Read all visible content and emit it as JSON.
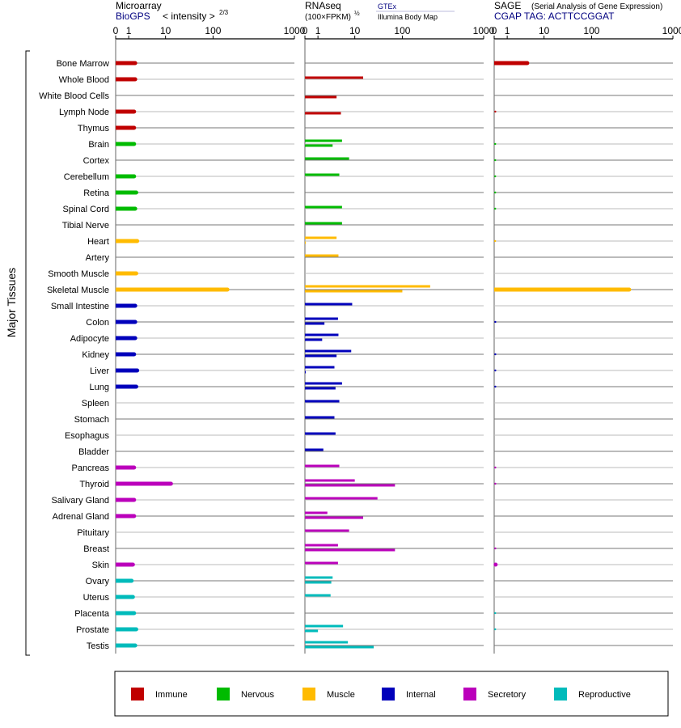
{
  "colors": {
    "Immune": "#c00000",
    "Nervous": "#00bb00",
    "Muscle": "#ffbb00",
    "Internal": "#0000bb",
    "Secretory": "#bb00bb",
    "Reproductive": "#00bbbb"
  },
  "side_label": "Major Tissues",
  "legend": [
    "Immune",
    "Nervous",
    "Muscle",
    "Internal",
    "Secretory",
    "Reproductive"
  ],
  "panels": [
    {
      "title": "Microarray",
      "subtitle": "BioGPS",
      "subtitle_extra": "< intensity >",
      "exponent": "2/3",
      "ticks": [
        "0",
        "1",
        "10",
        "100",
        "1000"
      ]
    },
    {
      "title": "RNAseq",
      "subtitle": "(100×FPKM)",
      "exponent": "½",
      "source_top": "GTEx",
      "source_bottom": "Illumina Body Map",
      "ticks": [
        "0",
        "1",
        "10",
        "100",
        "1000"
      ]
    },
    {
      "title": "SAGE",
      "title_extra": "(Serial Analysis of Gene Expression)",
      "subtitle": "CGAP TAG: ACTTCCGGAT",
      "ticks": [
        "0",
        "1",
        "10",
        "100",
        "1000"
      ]
    }
  ],
  "chart_data": {
    "type": "bar",
    "scale": "custom (0, 1, 10, 100, 1000 tick positions)",
    "xlim": [
      0,
      1000
    ],
    "tissues": [
      {
        "name": "Bone Marrow",
        "system": "Immune",
        "microarray": 1.5,
        "gtex": null,
        "ibm": null,
        "sage": 3.5
      },
      {
        "name": "Whole Blood",
        "system": "Immune",
        "microarray": 1.5,
        "gtex": 15,
        "ibm": null,
        "sage": 0
      },
      {
        "name": "White Blood Cells",
        "system": "Immune",
        "microarray": null,
        "gtex": null,
        "ibm": 3.2,
        "sage": 0
      },
      {
        "name": "Lymph Node",
        "system": "Immune",
        "microarray": 1.4,
        "gtex": null,
        "ibm": 4.2,
        "sage": 0.05
      },
      {
        "name": "Thymus",
        "system": "Immune",
        "microarray": 1.4,
        "gtex": null,
        "ibm": null,
        "sage": 0
      },
      {
        "name": "Brain",
        "system": "Nervous",
        "microarray": 1.4,
        "gtex": 4.5,
        "ibm": 2.5,
        "sage": 0.03
      },
      {
        "name": "Cortex",
        "system": "Nervous",
        "microarray": null,
        "gtex": 7,
        "ibm": null,
        "sage": 0.03
      },
      {
        "name": "Cerebellum",
        "system": "Nervous",
        "microarray": 1.4,
        "gtex": 3.8,
        "ibm": null,
        "sage": 0.03
      },
      {
        "name": "Retina",
        "system": "Nervous",
        "microarray": 1.6,
        "gtex": null,
        "ibm": null,
        "sage": 0.03
      },
      {
        "name": "Spinal Cord",
        "system": "Nervous",
        "microarray": 1.5,
        "gtex": 4.5,
        "ibm": null,
        "sage": 0.03
      },
      {
        "name": "Tibial Nerve",
        "system": "Nervous",
        "microarray": null,
        "gtex": 4.5,
        "ibm": null,
        "sage": 0
      },
      {
        "name": "Heart",
        "system": "Muscle",
        "microarray": 1.7,
        "gtex": 3.2,
        "ibm": 0.02,
        "sage": 0.02
      },
      {
        "name": "Artery",
        "system": "Muscle",
        "microarray": null,
        "gtex": 3.6,
        "ibm": null,
        "sage": 0
      },
      {
        "name": "Smooth Muscle",
        "system": "Muscle",
        "microarray": 1.6,
        "gtex": null,
        "ibm": null,
        "sage": 0
      },
      {
        "name": "Skeletal Muscle",
        "system": "Muscle",
        "microarray": 150,
        "gtex": 220,
        "ibm": 100,
        "sage": 290
      },
      {
        "name": "Small Intestine",
        "system": "Internal",
        "microarray": 1.5,
        "gtex": 8.5,
        "ibm": null,
        "sage": 0
      },
      {
        "name": "Colon",
        "system": "Internal",
        "microarray": 1.5,
        "gtex": 3.5,
        "ibm": 1.5,
        "sage": 0.05
      },
      {
        "name": "Adipocyte",
        "system": "Internal",
        "microarray": 1.5,
        "gtex": 3.6,
        "ibm": 1.3,
        "sage": 0
      },
      {
        "name": "Kidney",
        "system": "Internal",
        "microarray": 1.4,
        "gtex": 8,
        "ibm": 3.2,
        "sage": 0.05
      },
      {
        "name": "Liver",
        "system": "Internal",
        "microarray": 1.7,
        "gtex": 2.8,
        "ibm": 0.03,
        "sage": 0.05
      },
      {
        "name": "Lung",
        "system": "Internal",
        "microarray": 1.6,
        "gtex": 4.5,
        "ibm": 3.0,
        "sage": 0.05
      },
      {
        "name": "Spleen",
        "system": "Internal",
        "microarray": null,
        "gtex": 3.8,
        "ibm": null,
        "sage": 0
      },
      {
        "name": "Stomach",
        "system": "Internal",
        "microarray": null,
        "gtex": 2.8,
        "ibm": null,
        "sage": 0
      },
      {
        "name": "Esophagus",
        "system": "Internal",
        "microarray": null,
        "gtex": 3.0,
        "ibm": null,
        "sage": 0
      },
      {
        "name": "Bladder",
        "system": "Internal",
        "microarray": null,
        "gtex": 1.4,
        "ibm": null,
        "sage": 0
      },
      {
        "name": "Pancreas",
        "system": "Secretory",
        "microarray": 1.4,
        "gtex": 3.8,
        "ibm": null,
        "sage": 0.05
      },
      {
        "name": "Thyroid",
        "system": "Secretory",
        "microarray": 13,
        "gtex": 10,
        "ibm": 70,
        "sage": 0.05
      },
      {
        "name": "Salivary Gland",
        "system": "Secretory",
        "microarray": 1.4,
        "gtex": 30,
        "ibm": null,
        "sage": 0
      },
      {
        "name": "Adrenal Gland",
        "system": "Secretory",
        "microarray": 1.4,
        "gtex": 1.8,
        "ibm": 15,
        "sage": 0
      },
      {
        "name": "Pituitary",
        "system": "Secretory",
        "microarray": null,
        "gtex": 7,
        "ibm": null,
        "sage": 0
      },
      {
        "name": "Breast",
        "system": "Secretory",
        "microarray": null,
        "gtex": 3.5,
        "ibm": 70,
        "sage": 0.05
      },
      {
        "name": "Skin",
        "system": "Secretory",
        "microarray": 1.3,
        "gtex": 3.5,
        "ibm": null,
        "sage": 0.1
      },
      {
        "name": "Ovary",
        "system": "Reproductive",
        "microarray": 1.2,
        "gtex": 2.5,
        "ibm": 2.3,
        "sage": 0
      },
      {
        "name": "Uterus",
        "system": "Reproductive",
        "microarray": 1.3,
        "gtex": 2.2,
        "ibm": null,
        "sage": 0
      },
      {
        "name": "Placenta",
        "system": "Reproductive",
        "microarray": 1.4,
        "gtex": null,
        "ibm": null,
        "sage": 0.03
      },
      {
        "name": "Prostate",
        "system": "Reproductive",
        "microarray": 1.6,
        "gtex": 4.8,
        "ibm": 1.0,
        "sage": 0.03
      },
      {
        "name": "Testis",
        "system": "Reproductive",
        "microarray": 1.5,
        "gtex": 6.5,
        "ibm": 25,
        "sage": 0
      }
    ]
  }
}
